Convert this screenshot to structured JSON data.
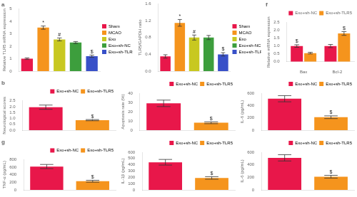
{
  "chart_data": [
    {
      "type": "bar",
      "title": "a",
      "categories": [
        "Sham",
        "MCAO",
        "Exo",
        "Exo+sh-NC",
        "Exo+sh-TLR5"
      ],
      "values": [
        1.0,
        3.5,
        2.55,
        2.3,
        1.2
      ],
      "errors": [
        0.06,
        0.13,
        0.12,
        0.08,
        0.09
      ],
      "colors": [
        "#e8174a",
        "#f5941d",
        "#c8c820",
        "#3d9e3d",
        "#3850c8"
      ],
      "ylabel": "Relative TLR5 mRNA expression",
      "ylim": [
        0,
        5
      ],
      "yticks": [
        0,
        1,
        2,
        3,
        4,
        5
      ],
      "grid": false,
      "legend": "right",
      "tick_labels": "y",
      "annotations": [
        {
          "text": "*",
          "category": "MCAO"
        },
        {
          "text": "#",
          "category": "Exo"
        },
        {
          "text": "$",
          "category": "Exo+sh-TLR5"
        }
      ]
    },
    {
      "type": "bar",
      "categories": [
        "Sham",
        "MCAO",
        "Exo",
        "Exo+sh-NC",
        "Exo+sh-TLR5"
      ],
      "values": [
        0.35,
        1.15,
        0.8,
        0.8,
        0.4
      ],
      "errors": [
        0.04,
        0.08,
        0.06,
        0.05,
        0.04
      ],
      "colors": [
        "#e8174a",
        "#f5941d",
        "#c8c820",
        "#3d9e3d",
        "#3850c8"
      ],
      "ylabel": "TLR5/GAPDH ratio",
      "ylim": [
        0.0,
        1.6
      ],
      "yticks": [
        {
          "value": 0,
          "label": "0.0"
        },
        0.4,
        0.8,
        1.2,
        1.6
      ],
      "grid": false,
      "legend": "right",
      "tick_labels": "y",
      "annotations": [
        {
          "text": "*",
          "category": "MCAO"
        },
        {
          "text": "#",
          "category": "Exo"
        },
        {
          "text": "$",
          "category": "Exo+sh-TLR5"
        }
      ]
    },
    {
      "type": "bar",
      "title": "b",
      "categories": [
        "Exo+sh-NC",
        "Exo+sh-TLR5"
      ],
      "values": [
        1.95,
        0.85
      ],
      "errors": [
        0.18,
        0.05
      ],
      "colors": [
        "#e8174a",
        "#f5941d"
      ],
      "ylabel": "Neurological scores",
      "ylim": [
        0,
        2.5
      ],
      "yticks": [
        {
          "value": 0,
          "label": "0.0"
        },
        0.5,
        {
          "value": 1,
          "label": "1.0"
        },
        1.5,
        {
          "value": 2,
          "label": "2.0"
        },
        2.5
      ],
      "grid": false,
      "legend": "upper right",
      "tick_labels": "y",
      "annotations": [
        {
          "text": "$",
          "category": "Exo+sh-TLR5"
        }
      ]
    },
    {
      "type": "bar",
      "categories": [
        "Exo+sh-NC",
        "Exo+sh-TLR5"
      ],
      "values": [
        29.0,
        8.0
      ],
      "errors": [
        3.5,
        1.0
      ],
      "colors": [
        "#e8174a",
        "#f5941d"
      ],
      "ylabel": "Apoptosis rate (%)",
      "ylim": [
        0,
        40
      ],
      "yticks": [
        0,
        10,
        20,
        30,
        40
      ],
      "grid": false,
      "legend": "upper right",
      "tick_labels": "y",
      "annotations": [
        {
          "text": "$",
          "category": "Exo+sh-TLR5"
        }
      ]
    },
    {
      "type": "bar",
      "categories": [
        "Exo+sh-NC",
        "Exo+sh-TLR5"
      ],
      "values": [
        510,
        210
      ],
      "errors": [
        50,
        22
      ],
      "colors": [
        "#e8174a",
        "#f5941d"
      ],
      "ylabel": "IL-6 (pg/mL)",
      "ylim": [
        0,
        600
      ],
      "yticks": [
        0,
        200,
        400,
        600
      ],
      "grid": false,
      "legend": "upper right",
      "tick_labels": "y",
      "annotations": [
        {
          "text": "$",
          "category": "Exo+sh-TLR5"
        }
      ]
    },
    {
      "type": "bar",
      "title": "f",
      "categories": [
        "Bax",
        "Bcl-2"
      ],
      "series": [
        {
          "name": "Exo+sh-NC",
          "color": "#e8174a",
          "values": [
            1.0,
            1.0
          ],
          "errors": [
            0.08,
            0.1
          ]
        },
        {
          "name": "Exo+sh-TLR5",
          "color": "#f5941d",
          "values": [
            0.55,
            1.8
          ],
          "errors": [
            0.05,
            0.12
          ]
        }
      ],
      "ylabel": "Relative mRNA expression",
      "ylim": [
        0,
        2.5
      ],
      "yticks": [
        {
          "value": 0,
          "label": "0.0"
        },
        0.5,
        {
          "value": 1,
          "label": "1.0"
        },
        1.5,
        {
          "value": 2,
          "label": "2.0"
        },
        2.5
      ],
      "grid": false,
      "legend": "upper right",
      "annotations": [
        {
          "text": "$",
          "category": "Bax",
          "series": "Exo+sh-NC"
        },
        {
          "text": "$",
          "category": "Bcl-2",
          "series": "Exo+sh-TLR5"
        }
      ]
    },
    {
      "type": "bar",
      "title": "g",
      "categories": [
        "Exo+sh-NC",
        "Exo+sh-TLR5"
      ],
      "values": [
        620,
        230
      ],
      "errors": [
        55,
        25
      ],
      "colors": [
        "#e8174a",
        "#f5941d"
      ],
      "ylabel": "TNF-α (pg/mL)",
      "ylim": [
        0,
        800
      ],
      "yticks": [
        0,
        200,
        400,
        600,
        800
      ],
      "grid": false,
      "legend": "upper right",
      "tick_labels": "y",
      "annotations": [
        {
          "text": "$",
          "category": "Exo+sh-TLR5"
        }
      ]
    },
    {
      "type": "bar",
      "categories": [
        "Exo+sh-NC",
        "Exo+sh-TLR5"
      ],
      "values": [
        440,
        190
      ],
      "errors": [
        45,
        20
      ],
      "colors": [
        "#e8174a",
        "#f5941d"
      ],
      "ylabel": "IL-1β (pg/mL)",
      "ylim": [
        0,
        600
      ],
      "yticks": [
        0,
        100,
        200,
        300,
        400,
        500,
        600
      ],
      "grid": false,
      "legend": "upper right",
      "tick_labels": "y",
      "annotations": [
        {
          "text": "$",
          "category": "Exo+sh-TLR5"
        }
      ]
    },
    {
      "type": "bar",
      "categories": [
        "Exo+sh-NC",
        "Exo+sh-TLR5"
      ],
      "values": [
        510,
        210
      ],
      "errors": [
        50,
        22
      ],
      "colors": [
        "#e8174a",
        "#f5941d"
      ],
      "ylabel": "IL-6 (pg/mL)",
      "ylim": [
        0,
        600
      ],
      "yticks": [
        0,
        200,
        400,
        600
      ],
      "grid": false,
      "legend": "upper right",
      "tick_labels": "y",
      "annotations": [
        {
          "text": "$",
          "category": "Exo+sh-TLR5"
        }
      ]
    }
  ]
}
